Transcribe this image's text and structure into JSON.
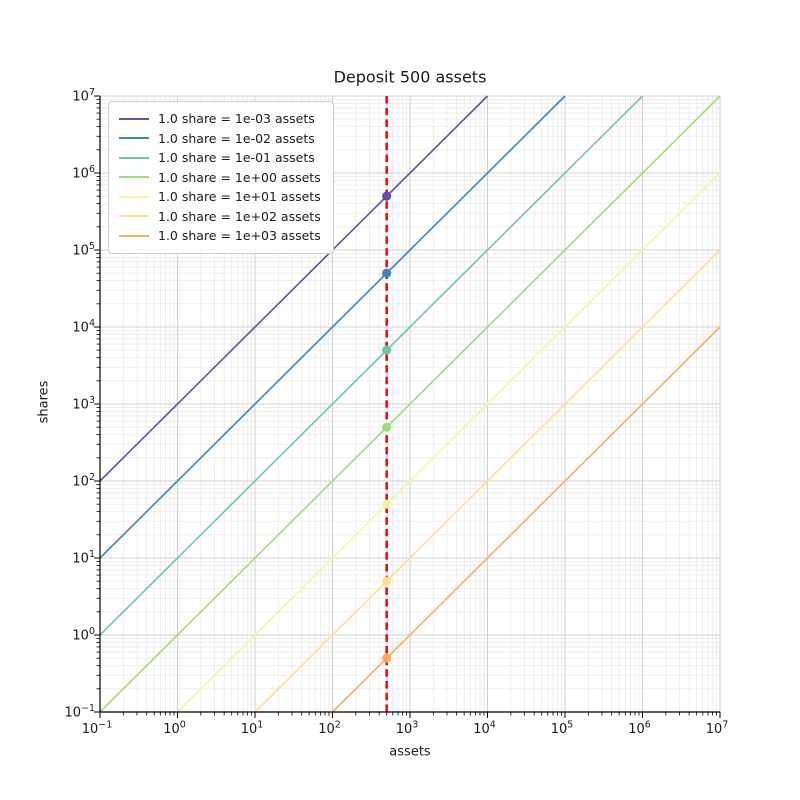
{
  "figure": {
    "background": "#ffffff"
  },
  "chart_data": {
    "type": "line",
    "title": "Deposit 500 assets",
    "xlabel": "assets",
    "ylabel": "shares",
    "xscale": "log",
    "yscale": "log",
    "xlim": [
      0.1,
      10000000
    ],
    "ylim": [
      0.1,
      10000000
    ],
    "x_tick_exponents": [
      -1,
      0,
      1,
      2,
      3,
      4,
      5,
      6,
      7
    ],
    "y_tick_exponents": [
      -1,
      0,
      1,
      2,
      3,
      4,
      5,
      6,
      7
    ],
    "grid": "both",
    "legend_position": "upper left",
    "deposit_line": {
      "x": 500,
      "color": "#f00404",
      "style": "dashed"
    },
    "series": [
      {
        "name": "1.0 share = 1e-03 assets",
        "rate": 0.001,
        "color": "#5e51a8",
        "endpoints": [
          [
            0.1,
            100
          ],
          [
            10000,
            10000000
          ]
        ],
        "marker": {
          "x": 500,
          "y": 500000
        }
      },
      {
        "name": "1.0 share = 1e-02 assets",
        "rate": 0.01,
        "color": "#3a87bf",
        "endpoints": [
          [
            0.1,
            10
          ],
          [
            100000,
            10000000
          ]
        ],
        "marker": {
          "x": 500,
          "y": 50000
        }
      },
      {
        "name": "1.0 share = 1e-01 assets",
        "rate": 0.1,
        "color": "#6fc7a8",
        "endpoints": [
          [
            0.1,
            1
          ],
          [
            1000000,
            10000000
          ]
        ],
        "marker": {
          "x": 500,
          "y": 5000
        }
      },
      {
        "name": "1.0 share = 1e+00 assets",
        "rate": 1,
        "color": "#a0da7e",
        "endpoints": [
          [
            0.1,
            0.1
          ],
          [
            10000000,
            10000000
          ]
        ],
        "marker": {
          "x": 500,
          "y": 500
        }
      },
      {
        "name": "1.0 share = 1e+01 assets",
        "rate": 10,
        "color": "#eef89f",
        "endpoints": [
          [
            1,
            0.1
          ],
          [
            10000000,
            1000000
          ]
        ],
        "marker": {
          "x": 500,
          "y": 50
        }
      },
      {
        "name": "1.0 share = 1e+02 assets",
        "rate": 100,
        "color": "#fee08b",
        "endpoints": [
          [
            10,
            0.1
          ],
          [
            10000000,
            100000
          ]
        ],
        "marker": {
          "x": 500,
          "y": 5
        }
      },
      {
        "name": "1.0 share = 1e+03 assets",
        "rate": 1000,
        "color": "#fdab5f",
        "endpoints": [
          [
            100,
            0.1
          ],
          [
            10000000,
            10000
          ]
        ],
        "marker": {
          "x": 500,
          "y": 0.5
        }
      }
    ]
  },
  "style": {
    "grid_major_color": "#d0d0d0",
    "grid_minor_color": "#e9e9e9",
    "spine_color": "#000000",
    "tick_color": "#000000",
    "text_color": "#1a1a1a",
    "legend_border_color": "#cccccc",
    "legend_bg": "#ffffff"
  }
}
